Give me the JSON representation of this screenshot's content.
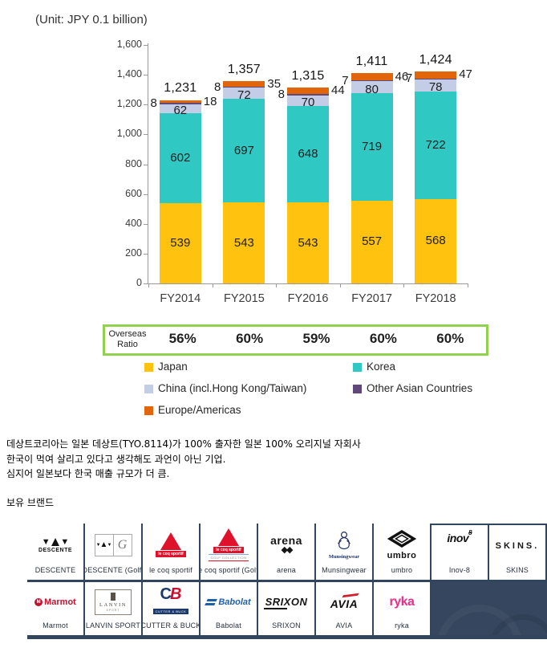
{
  "chart_data": {
    "type": "bar",
    "stacked": true,
    "unit_label": "(Unit: JPY 0.1  billion)",
    "categories": [
      "FY2014",
      "FY2015",
      "FY2016",
      "FY2017",
      "FY2018"
    ],
    "series": [
      {
        "name": "Japan",
        "color": "#FFC20E",
        "values": [
          539,
          543,
          543,
          557,
          568
        ]
      },
      {
        "name": "Korea",
        "color": "#30C8C3",
        "values": [
          602,
          697,
          648,
          719,
          722
        ]
      },
      {
        "name": "China (incl.Hong Kong/Taiwan)",
        "color": "#C3CDE6",
        "values": [
          62,
          72,
          70,
          80,
          78
        ]
      },
      {
        "name": "Other Asian Countries",
        "color": "#5F497A",
        "values": [
          8,
          8,
          8,
          7,
          7
        ]
      },
      {
        "name": "Europe/Americas",
        "color": "#E2650A",
        "values": [
          18,
          35,
          44,
          46,
          47
        ]
      }
    ],
    "totals": [
      "1,231",
      "1,357",
      "1,315",
      "1,411",
      "1,424"
    ],
    "ylim": [
      0,
      1600
    ],
    "yticks": [
      "0",
      "200",
      "400",
      "600",
      "800",
      "1,000",
      "1,200",
      "1,400",
      "1,600"
    ],
    "grid": false,
    "legend_position": "bottom"
  },
  "overseas": {
    "label_line1": "Overseas",
    "label_line2": "Ratio",
    "values": [
      "56%",
      "60%",
      "59%",
      "60%",
      "60%"
    ],
    "border_color": "#92D050"
  },
  "legend": {
    "items": [
      {
        "label": "Japan",
        "color": "#FFC20E"
      },
      {
        "label": "Korea",
        "color": "#30C8C3"
      },
      {
        "label": "China (incl.Hong Kong/Taiwan)",
        "color": "#C3CDE6"
      },
      {
        "label": "Other Asian Countries",
        "color": "#5F497A"
      },
      {
        "label": "Europe/Americas",
        "color": "#E2650A"
      }
    ]
  },
  "korean_text": {
    "lines": [
      "데상트코리아는 일본 데상트(TYO.8114)가 100% 출자한 일본 100% 오리지널 자회사",
      "한국이 먹여 살리고 있다고 생각해도 과언이 아닌 기업.",
      "심지어 일본보다 한국 매출 규모가 더 큼."
    ],
    "brands_heading": "보유 브랜드"
  },
  "brands": {
    "row1": [
      {
        "id": "descente",
        "caption": "DESCENTE",
        "icon": "descente-arrows-icon",
        "main": "DESCENTE"
      },
      {
        "id": "descente-golf",
        "caption": "DESCENTE (Golf)",
        "icon": "descente-mini-mark-icon",
        "main": "G"
      },
      {
        "id": "lecoq",
        "caption": "le coq sportif",
        "icon": "rooster-triangle-icon",
        "main": "le coq sportif"
      },
      {
        "id": "lecoq-golf",
        "caption": "le coq sportif (Golf)",
        "icon": "rooster-triangle-icon",
        "main": "le coq sportif",
        "sub": "GOLF COLLECTION"
      },
      {
        "id": "arena",
        "caption": "arena",
        "icon": "arena-diamonds-icon",
        "main": "arena"
      },
      {
        "id": "munsingwear",
        "caption": "Munsingwear",
        "icon": "penguin-icon",
        "main": "Munsingwear"
      },
      {
        "id": "umbro",
        "caption": "umbro",
        "icon": "double-diamond-icon",
        "main": "umbro"
      },
      {
        "id": "inov8",
        "caption": "Inov-8",
        "main": "inov",
        "sub": "8"
      },
      {
        "id": "skins",
        "caption": "SKINS",
        "main": "SKINS."
      }
    ],
    "row2": [
      {
        "id": "marmot",
        "caption": "Marmot",
        "icon": "marmot-m-icon",
        "main": "Marmot"
      },
      {
        "id": "lanvin",
        "caption": "LANVIN SPORT",
        "icon": "lanvin-emblem-icon",
        "main": "LANVIN",
        "sub": "SPORT"
      },
      {
        "id": "cutter",
        "caption": "CUTTER & BUCK",
        "main": "C",
        "sub": "B",
        "tag": "CUTTER & BUCK"
      },
      {
        "id": "babolat",
        "caption": "Babolat",
        "icon": "babolat-stripes-icon",
        "main": "Babolat"
      },
      {
        "id": "srixon",
        "caption": "SRIXON",
        "main": "SRIXON"
      },
      {
        "id": "avia",
        "caption": "AVIA",
        "icon": "avia-swoosh-icon",
        "main": "AVIA"
      },
      {
        "id": "ryka",
        "caption": "ryka",
        "main": "ryka"
      }
    ]
  },
  "colors": {
    "grid_navy": "#31455f",
    "filler_navy": "#35465e",
    "axis_gray": "#9a9a9a"
  }
}
